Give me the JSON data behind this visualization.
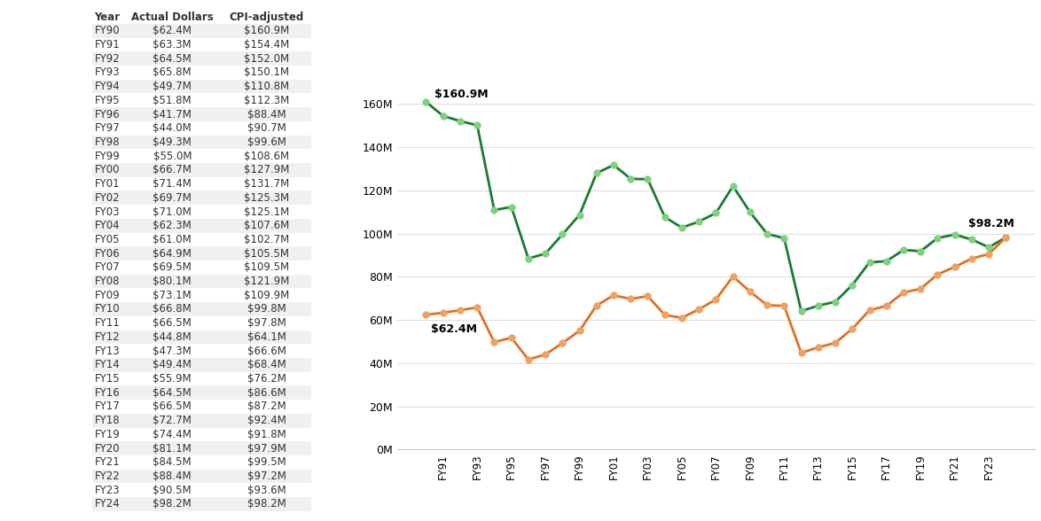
{
  "years": [
    "FY90",
    "FY91",
    "FY92",
    "FY93",
    "FY94",
    "FY95",
    "FY96",
    "FY97",
    "FY98",
    "FY99",
    "FY00",
    "FY01",
    "FY02",
    "FY03",
    "FY04",
    "FY05",
    "FY06",
    "FY07",
    "FY08",
    "FY09",
    "FY10",
    "FY11",
    "FY12",
    "FY13",
    "FY14",
    "FY15",
    "FY16",
    "FY17",
    "FY18",
    "FY19",
    "FY20",
    "FY21",
    "FY22",
    "FY23",
    "FY24"
  ],
  "actual": [
    62.4,
    63.3,
    64.5,
    65.8,
    49.7,
    51.8,
    41.7,
    44.0,
    49.3,
    55.0,
    66.7,
    71.4,
    69.7,
    71.0,
    62.3,
    61.0,
    64.9,
    69.5,
    80.1,
    73.1,
    66.8,
    66.5,
    44.8,
    47.3,
    49.4,
    55.9,
    64.5,
    66.5,
    72.7,
    74.4,
    81.1,
    84.5,
    88.4,
    90.5,
    98.2
  ],
  "cpi": [
    160.9,
    154.4,
    152.0,
    150.1,
    110.8,
    112.3,
    88.4,
    90.7,
    99.6,
    108.6,
    127.9,
    131.7,
    125.3,
    125.1,
    107.6,
    102.7,
    105.5,
    109.5,
    121.9,
    109.9,
    99.8,
    97.8,
    64.1,
    66.6,
    68.4,
    76.2,
    86.6,
    87.2,
    92.4,
    91.8,
    97.9,
    99.5,
    97.2,
    93.6,
    98.2
  ],
  "actual_color": "#E07020",
  "actual_marker_color": "#F0A060",
  "cpi_color": "#1A7A30",
  "cpi_marker_color": "#80D080",
  "table_header_color": "#FFFFFF",
  "table_row_even_color": "#F0F0F0",
  "table_row_odd_color": "#FFFFFF",
  "table_text_color": "#333333",
  "annotation_first_actual": "$62.4M",
  "annotation_first_cpi": "$160.9M",
  "annotation_last": "$98.2M",
  "yticks": [
    0,
    20,
    40,
    60,
    80,
    100,
    120,
    140,
    160
  ],
  "ylim": [
    0,
    175
  ],
  "background_color": "#FFFFFF",
  "grid_color": "#DDDDDD"
}
